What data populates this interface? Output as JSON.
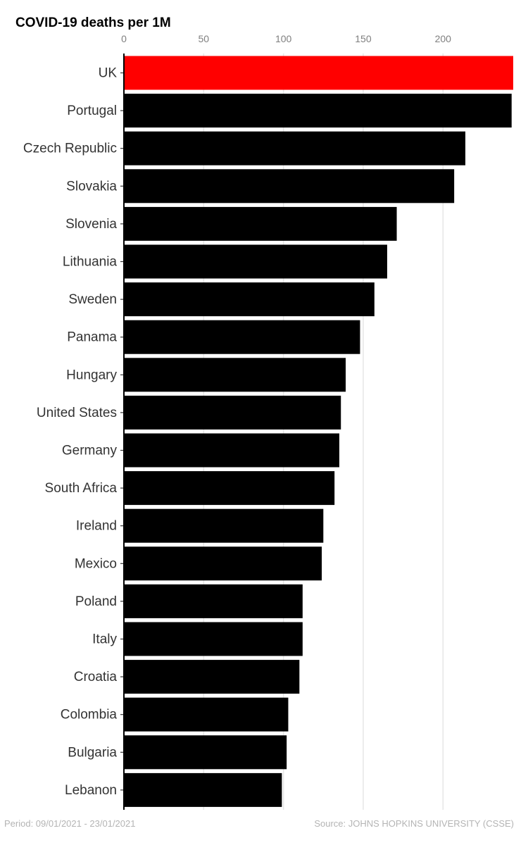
{
  "chart_data": {
    "type": "bar",
    "orientation": "horizontal",
    "title": "COVID-19 deaths per 1M",
    "xlabel": "",
    "ylabel": "",
    "xlim": [
      0,
      244
    ],
    "x_ticks": [
      0,
      50,
      100,
      150,
      200
    ],
    "x_axis_position": "top",
    "grid": true,
    "categories": [
      "UK",
      "Portugal",
      "Czech Republic",
      "Slovakia",
      "Slovenia",
      "Lithuania",
      "Sweden",
      "Panama",
      "Hungary",
      "United States",
      "Germany",
      "South Africa",
      "Ireland",
      "Mexico",
      "Poland",
      "Italy",
      "Croatia",
      "Colombia",
      "Bulgaria",
      "Lebanon"
    ],
    "values": [
      244,
      243,
      214,
      207,
      171,
      165,
      157,
      148,
      139,
      136,
      135,
      132,
      125,
      124,
      112,
      112,
      110,
      103,
      102,
      99
    ],
    "highlight": {
      "category": "UK",
      "color": "#ff0000"
    },
    "colors": {
      "bar": "#000000",
      "highlight": "#ff0000",
      "grid": "#e6e6e6",
      "tick_label": "#7f7f7f",
      "category_label": "#333333"
    }
  },
  "footer": {
    "period": "Period: 09/01/2021 - 23/01/2021",
    "source": "Source:  JOHNS HOPKINS UNIVERSITY (CSSE)"
  }
}
